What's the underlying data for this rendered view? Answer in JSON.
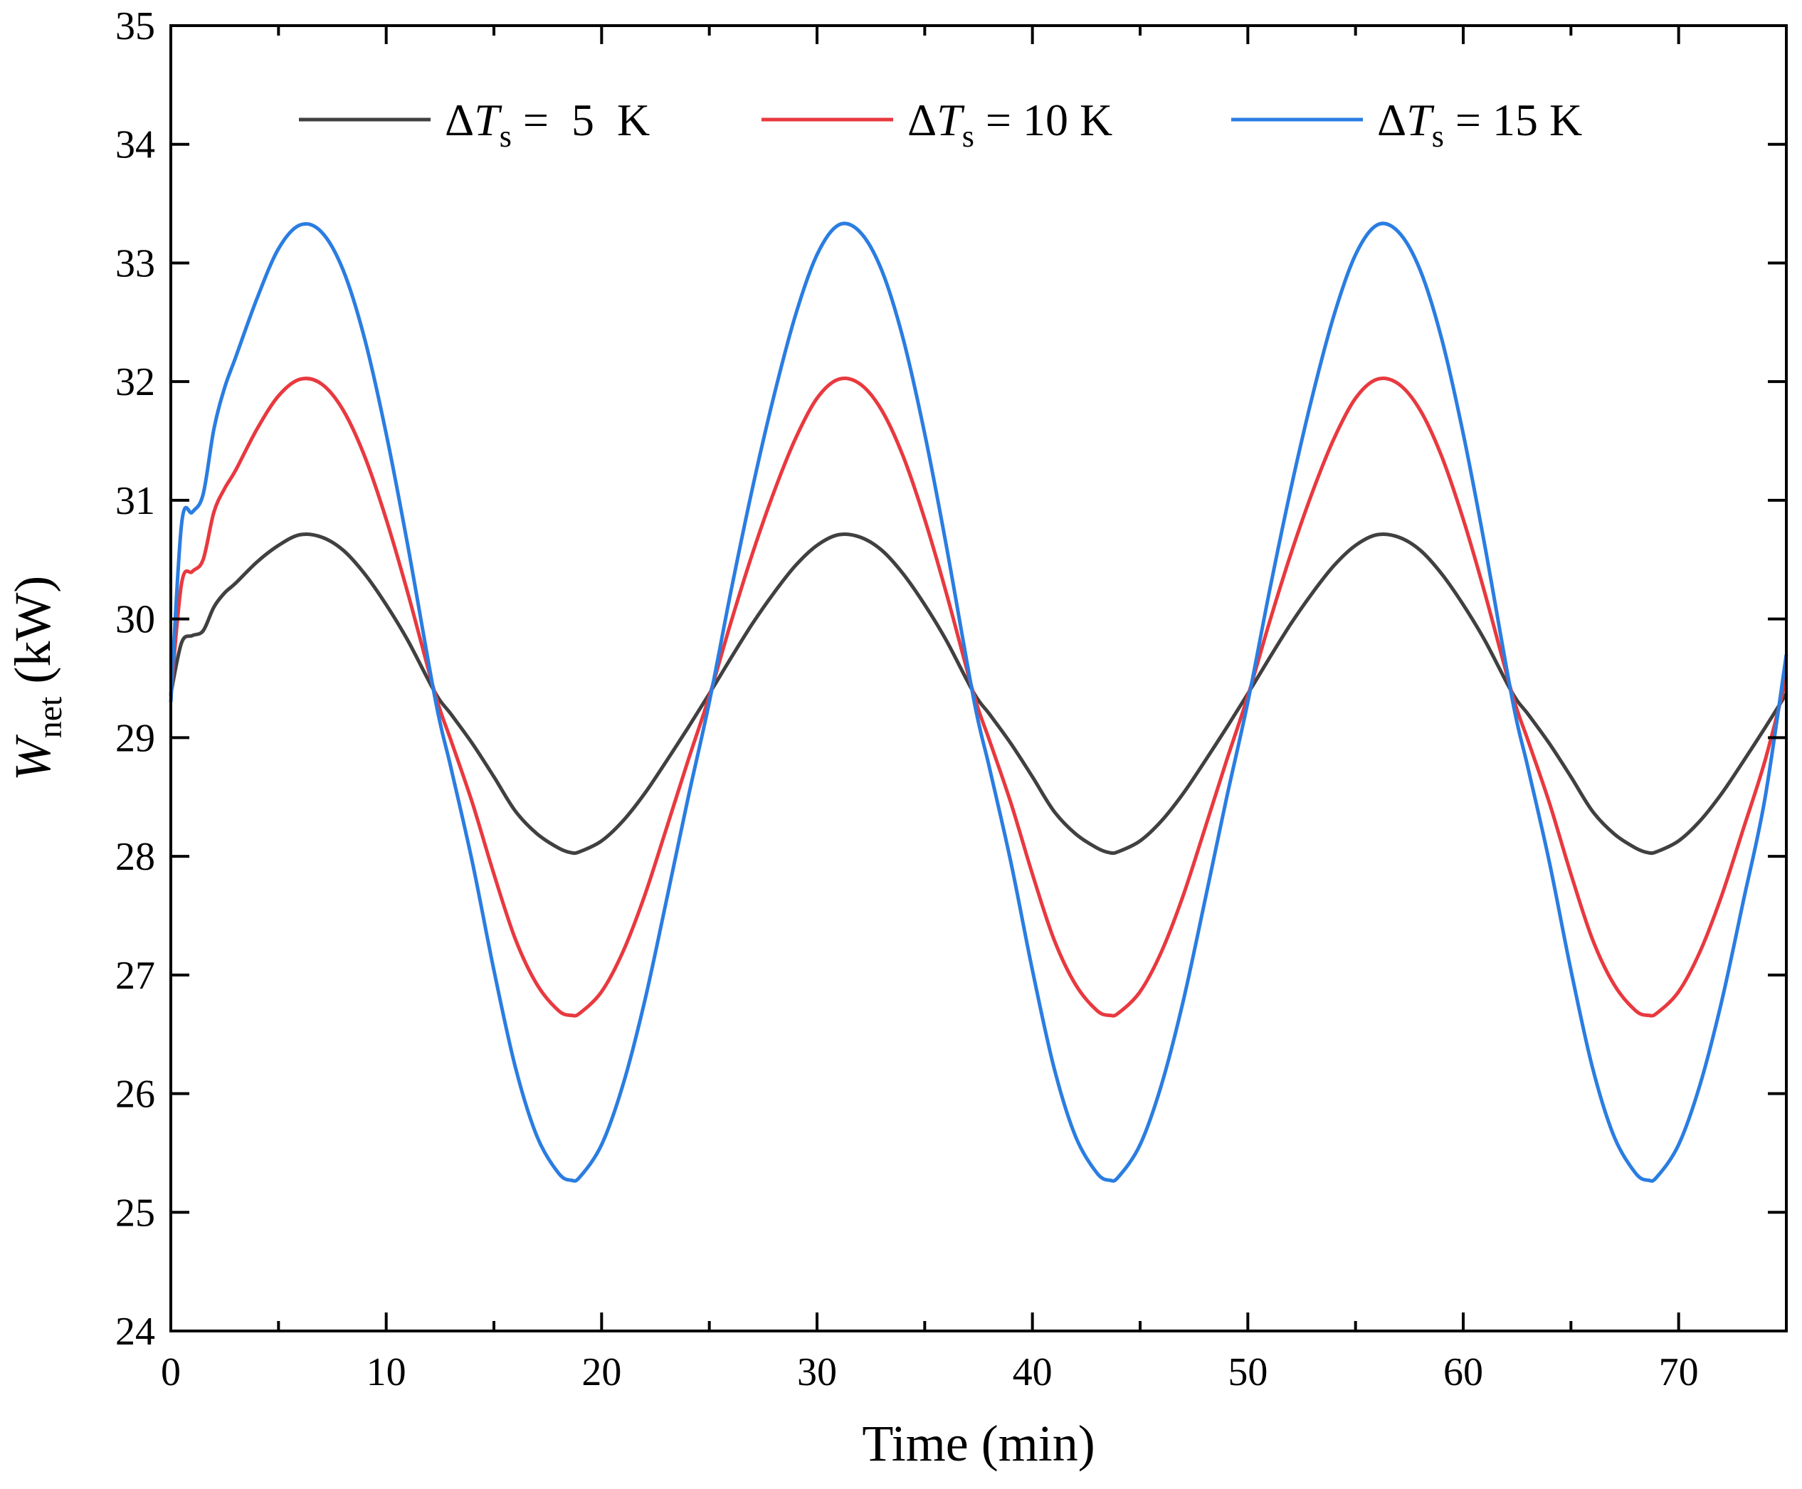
{
  "chart_data": {
    "type": "line",
    "title": "",
    "xlabel": "Time (min)",
    "ylabel": {
      "main": "W",
      "subscript": "net",
      "unit": " (kW)"
    },
    "xlim": [
      0,
      75
    ],
    "ylim": [
      24,
      35
    ],
    "x_ticks": [
      0,
      10,
      20,
      30,
      40,
      50,
      60,
      70
    ],
    "y_ticks": [
      24,
      25,
      26,
      27,
      28,
      29,
      30,
      31,
      32,
      33,
      34,
      35
    ],
    "grid": false,
    "legend_position": "top",
    "period_min": 25,
    "series": [
      {
        "legend": {
          "delta": "Δ",
          "var": "T",
          "sub": "s",
          "rest": " =  5  K"
        },
        "color": "#404040",
        "mean": 29.37,
        "amplitude": 1.34,
        "peaks": [
          [
            6.0,
            30.71
          ],
          [
            31.0,
            30.71
          ],
          [
            56.0,
            30.71
          ]
        ],
        "troughs": [
          [
            18.6,
            28.03
          ],
          [
            43.6,
            28.03
          ],
          [
            68.6,
            28.03
          ]
        ],
        "points": [
          [
            0,
            29.37
          ],
          [
            0.5,
            29.8
          ],
          [
            1.0,
            29.86
          ],
          [
            1.5,
            29.9
          ],
          [
            2.0,
            30.1
          ],
          [
            2.5,
            30.22
          ],
          [
            3.0,
            30.3
          ],
          [
            4.0,
            30.48
          ],
          [
            5.0,
            30.62
          ],
          [
            6.0,
            30.71
          ],
          [
            7.0,
            30.69
          ],
          [
            8.0,
            30.58
          ],
          [
            9.0,
            30.38
          ],
          [
            10.0,
            30.12
          ],
          [
            11.0,
            29.82
          ],
          [
            12.3,
            29.37
          ],
          [
            13.0,
            29.2
          ],
          [
            14.0,
            28.95
          ],
          [
            15.0,
            28.67
          ],
          [
            16.0,
            28.38
          ],
          [
            17.0,
            28.19
          ],
          [
            18.0,
            28.07
          ],
          [
            18.6,
            28.03
          ],
          [
            19.0,
            28.04
          ],
          [
            20.0,
            28.13
          ],
          [
            21.0,
            28.3
          ],
          [
            22.0,
            28.53
          ],
          [
            23.0,
            28.8
          ],
          [
            24.0,
            29.08
          ],
          [
            25.0,
            29.37
          ],
          [
            26.0,
            29.67
          ],
          [
            27.0,
            29.96
          ],
          [
            28.0,
            30.22
          ],
          [
            29.0,
            30.45
          ],
          [
            30.0,
            30.62
          ],
          [
            31.0,
            30.71
          ],
          [
            32.0,
            30.69
          ],
          [
            33.0,
            30.58
          ],
          [
            34.0,
            30.38
          ],
          [
            35.0,
            30.12
          ],
          [
            36.0,
            29.82
          ],
          [
            37.3,
            29.37
          ],
          [
            38.0,
            29.2
          ],
          [
            39.0,
            28.95
          ],
          [
            40.0,
            28.67
          ],
          [
            41.0,
            28.38
          ],
          [
            42.0,
            28.19
          ],
          [
            43.0,
            28.07
          ],
          [
            43.6,
            28.03
          ],
          [
            44.0,
            28.04
          ],
          [
            45.0,
            28.13
          ],
          [
            46.0,
            28.3
          ],
          [
            47.0,
            28.53
          ],
          [
            48.0,
            28.8
          ],
          [
            49.0,
            29.08
          ],
          [
            50.0,
            29.37
          ],
          [
            51.0,
            29.67
          ],
          [
            52.0,
            29.96
          ],
          [
            53.0,
            30.22
          ],
          [
            54.0,
            30.45
          ],
          [
            55.0,
            30.62
          ],
          [
            56.0,
            30.71
          ],
          [
            57.0,
            30.69
          ],
          [
            58.0,
            30.58
          ],
          [
            59.0,
            30.38
          ],
          [
            60.0,
            30.12
          ],
          [
            61.0,
            29.82
          ],
          [
            62.3,
            29.37
          ],
          [
            63.0,
            29.2
          ],
          [
            64.0,
            28.95
          ],
          [
            65.0,
            28.67
          ],
          [
            66.0,
            28.38
          ],
          [
            67.0,
            28.19
          ],
          [
            68.0,
            28.07
          ],
          [
            68.6,
            28.03
          ],
          [
            69.0,
            28.04
          ],
          [
            70.0,
            28.13
          ],
          [
            71.0,
            28.3
          ],
          [
            72.0,
            28.53
          ],
          [
            73.0,
            28.8
          ],
          [
            74.0,
            29.08
          ],
          [
            75.0,
            29.37
          ]
        ]
      },
      {
        "legend": {
          "delta": "Δ",
          "var": "T",
          "sub": "s",
          "rest": " = 10 K"
        },
        "color": "#e8393f",
        "mean": 29.35,
        "amplitude": 2.68,
        "peaks": [
          [
            6.0,
            32.02
          ],
          [
            31.0,
            32.02
          ],
          [
            56.0,
            32.02
          ]
        ],
        "troughs": [
          [
            18.6,
            26.66
          ],
          [
            43.6,
            26.66
          ],
          [
            68.6,
            26.66
          ]
        ],
        "points": [
          [
            0,
            29.35
          ],
          [
            0.5,
            30.3
          ],
          [
            1.0,
            30.4
          ],
          [
            1.5,
            30.5
          ],
          [
            2.0,
            30.9
          ],
          [
            2.5,
            31.1
          ],
          [
            3.0,
            31.25
          ],
          [
            4.0,
            31.6
          ],
          [
            5.0,
            31.88
          ],
          [
            6.0,
            32.02
          ],
          [
            7.0,
            31.98
          ],
          [
            8.0,
            31.76
          ],
          [
            9.0,
            31.37
          ],
          [
            10.0,
            30.84
          ],
          [
            11.0,
            30.22
          ],
          [
            12.3,
            29.35
          ],
          [
            13.0,
            28.98
          ],
          [
            14.0,
            28.45
          ],
          [
            15.0,
            27.85
          ],
          [
            16.0,
            27.3
          ],
          [
            17.0,
            26.92
          ],
          [
            18.0,
            26.7
          ],
          [
            18.6,
            26.66
          ],
          [
            19.0,
            26.68
          ],
          [
            20.0,
            26.86
          ],
          [
            21.0,
            27.2
          ],
          [
            22.0,
            27.67
          ],
          [
            23.0,
            28.23
          ],
          [
            24.0,
            28.8
          ],
          [
            25.0,
            29.35
          ],
          [
            26.0,
            29.97
          ],
          [
            27.0,
            30.55
          ],
          [
            28.0,
            31.07
          ],
          [
            29.0,
            31.52
          ],
          [
            30.0,
            31.86
          ],
          [
            31.0,
            32.02
          ],
          [
            32.0,
            31.98
          ],
          [
            33.0,
            31.76
          ],
          [
            34.0,
            31.37
          ],
          [
            35.0,
            30.84
          ],
          [
            36.0,
            30.22
          ],
          [
            37.3,
            29.35
          ],
          [
            38.0,
            28.98
          ],
          [
            39.0,
            28.45
          ],
          [
            40.0,
            27.85
          ],
          [
            41.0,
            27.3
          ],
          [
            42.0,
            26.92
          ],
          [
            43.0,
            26.7
          ],
          [
            43.6,
            26.66
          ],
          [
            44.0,
            26.68
          ],
          [
            45.0,
            26.86
          ],
          [
            46.0,
            27.2
          ],
          [
            47.0,
            27.67
          ],
          [
            48.0,
            28.23
          ],
          [
            49.0,
            28.8
          ],
          [
            50.0,
            29.35
          ],
          [
            51.0,
            29.97
          ],
          [
            52.0,
            30.55
          ],
          [
            53.0,
            31.07
          ],
          [
            54.0,
            31.52
          ],
          [
            55.0,
            31.86
          ],
          [
            56.0,
            32.02
          ],
          [
            57.0,
            31.98
          ],
          [
            58.0,
            31.76
          ],
          [
            59.0,
            31.37
          ],
          [
            60.0,
            30.84
          ],
          [
            61.0,
            30.22
          ],
          [
            62.3,
            29.35
          ],
          [
            63.0,
            28.98
          ],
          [
            64.0,
            28.45
          ],
          [
            65.0,
            27.85
          ],
          [
            66.0,
            27.3
          ],
          [
            67.0,
            26.92
          ],
          [
            68.0,
            26.7
          ],
          [
            68.6,
            26.66
          ],
          [
            69.0,
            26.68
          ],
          [
            70.0,
            26.86
          ],
          [
            71.0,
            27.2
          ],
          [
            72.0,
            27.67
          ],
          [
            73.0,
            28.23
          ],
          [
            74.0,
            28.8
          ],
          [
            75.0,
            29.5
          ]
        ]
      },
      {
        "legend": {
          "delta": "Δ",
          "var": "T",
          "sub": "s",
          "rest": " = 15 K"
        },
        "color": "#2a7de1",
        "mean": 29.3,
        "amplitude": 4.02,
        "peaks": [
          [
            6.0,
            33.32
          ],
          [
            31.0,
            33.32
          ],
          [
            56.0,
            33.32
          ]
        ],
        "troughs": [
          [
            18.6,
            25.27
          ],
          [
            43.6,
            25.27
          ],
          [
            68.6,
            25.27
          ]
        ],
        "points": [
          [
            0,
            29.3
          ],
          [
            0.5,
            30.8
          ],
          [
            1.0,
            30.9
          ],
          [
            1.5,
            31.05
          ],
          [
            2.0,
            31.6
          ],
          [
            2.5,
            31.95
          ],
          [
            3.0,
            32.2
          ],
          [
            4.0,
            32.7
          ],
          [
            5.0,
            33.12
          ],
          [
            6.0,
            33.32
          ],
          [
            7.0,
            33.26
          ],
          [
            8.0,
            32.94
          ],
          [
            9.0,
            32.36
          ],
          [
            10.0,
            31.56
          ],
          [
            11.0,
            30.62
          ],
          [
            12.3,
            29.3
          ],
          [
            13.0,
            28.75
          ],
          [
            14.0,
            27.95
          ],
          [
            15.0,
            27.04
          ],
          [
            16.0,
            26.22
          ],
          [
            17.0,
            25.64
          ],
          [
            18.0,
            25.33
          ],
          [
            18.6,
            25.27
          ],
          [
            19.0,
            25.3
          ],
          [
            20.0,
            25.57
          ],
          [
            21.0,
            26.08
          ],
          [
            22.0,
            26.78
          ],
          [
            23.0,
            27.62
          ],
          [
            24.0,
            28.48
          ],
          [
            25.0,
            29.3
          ],
          [
            26.0,
            30.23
          ],
          [
            27.0,
            31.1
          ],
          [
            28.0,
            31.88
          ],
          [
            29.0,
            32.56
          ],
          [
            30.0,
            33.07
          ],
          [
            31.0,
            33.32
          ],
          [
            32.0,
            33.26
          ],
          [
            33.0,
            32.94
          ],
          [
            34.0,
            32.36
          ],
          [
            35.0,
            31.56
          ],
          [
            36.0,
            30.62
          ],
          [
            37.3,
            29.3
          ],
          [
            38.0,
            28.75
          ],
          [
            39.0,
            27.95
          ],
          [
            40.0,
            27.04
          ],
          [
            41.0,
            26.22
          ],
          [
            42.0,
            25.64
          ],
          [
            43.0,
            25.33
          ],
          [
            43.6,
            25.27
          ],
          [
            44.0,
            25.3
          ],
          [
            45.0,
            25.57
          ],
          [
            46.0,
            26.08
          ],
          [
            47.0,
            26.78
          ],
          [
            48.0,
            27.62
          ],
          [
            49.0,
            28.48
          ],
          [
            50.0,
            29.3
          ],
          [
            51.0,
            30.23
          ],
          [
            52.0,
            31.1
          ],
          [
            53.0,
            31.88
          ],
          [
            54.0,
            32.56
          ],
          [
            55.0,
            33.07
          ],
          [
            56.0,
            33.32
          ],
          [
            57.0,
            33.26
          ],
          [
            58.0,
            32.94
          ],
          [
            59.0,
            32.36
          ],
          [
            60.0,
            31.56
          ],
          [
            61.0,
            30.62
          ],
          [
            62.3,
            29.3
          ],
          [
            63.0,
            28.75
          ],
          [
            64.0,
            27.95
          ],
          [
            65.0,
            27.04
          ],
          [
            66.0,
            26.22
          ],
          [
            67.0,
            25.64
          ],
          [
            68.0,
            25.33
          ],
          [
            68.6,
            25.27
          ],
          [
            69.0,
            25.3
          ],
          [
            70.0,
            25.57
          ],
          [
            71.0,
            26.08
          ],
          [
            72.0,
            26.78
          ],
          [
            73.0,
            27.62
          ],
          [
            74.0,
            28.48
          ],
          [
            75.0,
            29.7
          ]
        ]
      }
    ]
  }
}
